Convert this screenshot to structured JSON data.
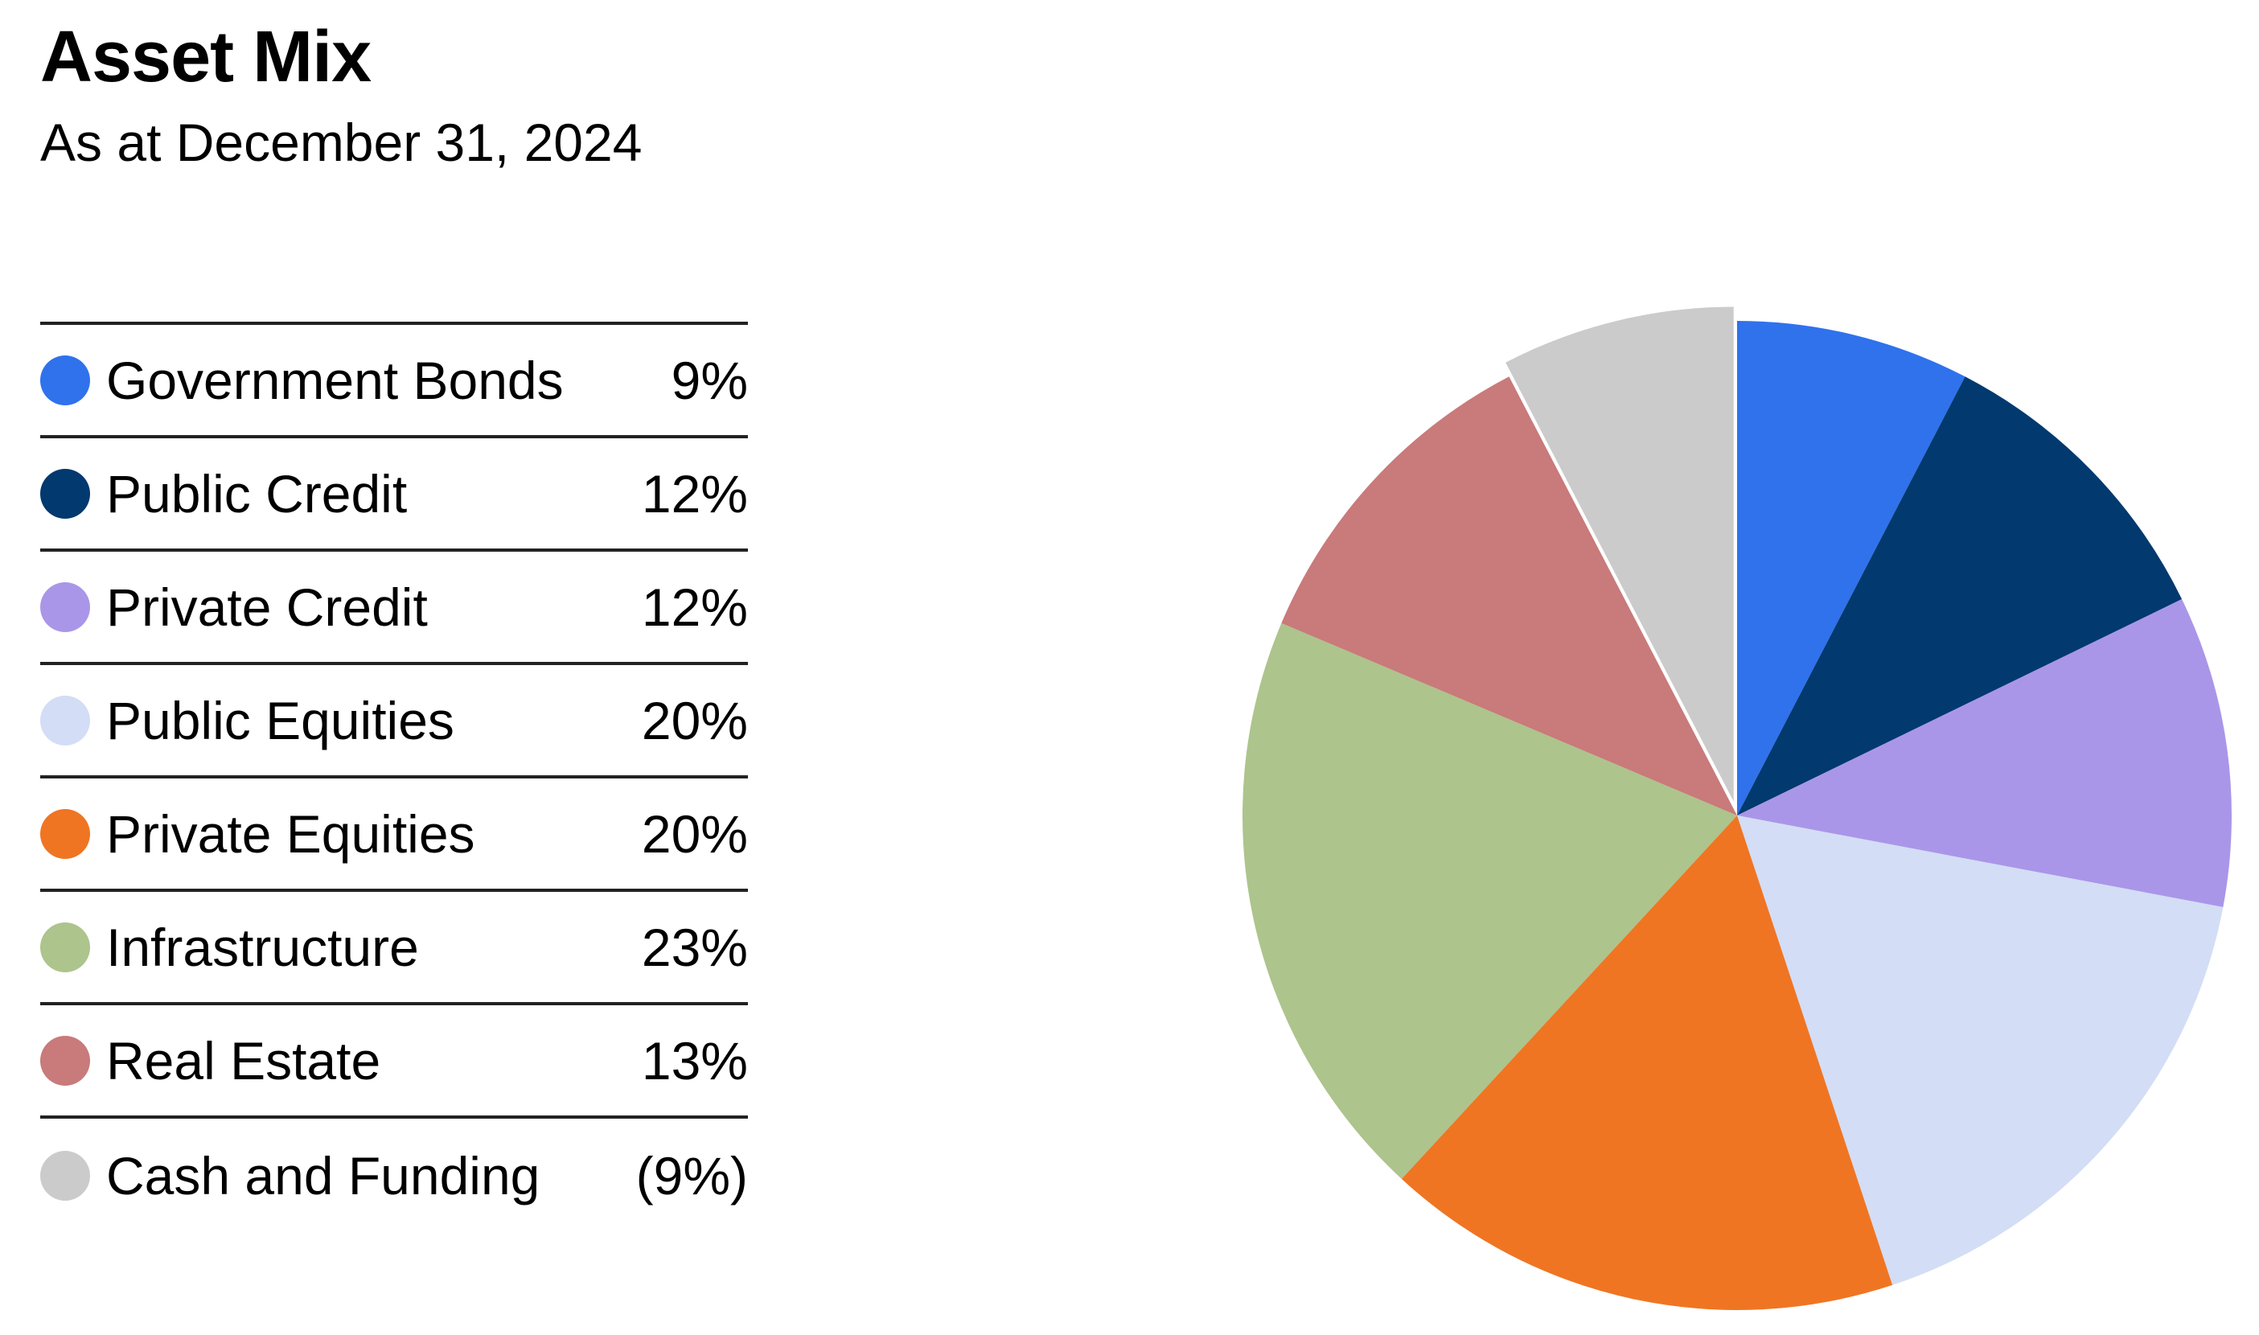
{
  "chart_data": {
    "type": "pie",
    "title": "Asset Mix",
    "subtitle": "As at December 31, 2024",
    "slices": [
      {
        "label": "Government Bonds",
        "value": 9,
        "display": "9%",
        "color": "#2f72ec"
      },
      {
        "label": "Public Credit",
        "value": 12,
        "display": "12%",
        "color": "#02396e"
      },
      {
        "label": "Private Credit",
        "value": 12,
        "display": "12%",
        "color": "#aa96e8"
      },
      {
        "label": "Public Equities",
        "value": 20,
        "display": "20%",
        "color": "#d3ddf5"
      },
      {
        "label": "Private Equities",
        "value": 20,
        "display": "20%",
        "color": "#ef7523"
      },
      {
        "label": "Infrastructure",
        "value": 23,
        "display": "23%",
        "color": "#adc48c"
      },
      {
        "label": "Real Estate",
        "value": 13,
        "display": "13%",
        "color": "#c97a7a"
      },
      {
        "label": "Cash and Funding",
        "value": -9,
        "display": "(9%)",
        "color": "#cbcbcb",
        "exploded": true
      }
    ],
    "legend": "left"
  }
}
